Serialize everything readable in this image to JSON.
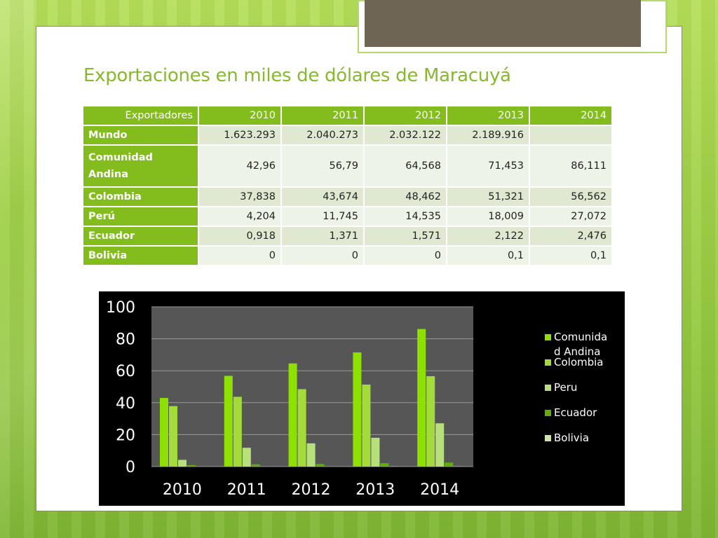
{
  "title": "Exportaciones en miles de dólares de Maracuyá",
  "table": {
    "headers": [
      "Exportadores",
      "2010",
      "2011",
      "2012",
      "2013",
      "2014"
    ],
    "rows": [
      {
        "name": "Mundo",
        "values": [
          "1.623.293",
          "2.040.273",
          "2.032.122",
          "2.189.916",
          ""
        ]
      },
      {
        "name_lines": [
          "Comunidad",
          "Andina"
        ],
        "values": [
          "42,96",
          "56,79",
          "64,568",
          "71,453",
          "86,111"
        ]
      },
      {
        "name": "Colombia",
        "values": [
          "37,838",
          "43,674",
          "48,462",
          "51,321",
          "56,562"
        ]
      },
      {
        "name": "Perú",
        "values": [
          "4,204",
          "11,745",
          "14,535",
          "18,009",
          "27,072"
        ]
      },
      {
        "name": "Ecuador",
        "values": [
          "0,918",
          "1,371",
          "1,571",
          "2,122",
          "2,476"
        ]
      },
      {
        "name": "Bolivia",
        "values": [
          "0",
          "0",
          "0",
          "0,1",
          "0,1"
        ]
      }
    ]
  },
  "colors": {
    "accent": "#83bd1d",
    "title": "#86b92f",
    "deco": "#6f6555"
  },
  "chart_data": {
    "type": "bar",
    "categories": [
      "2010",
      "2011",
      "2012",
      "2013",
      "2014"
    ],
    "series": [
      {
        "name": "Comunidad Andina",
        "legend_lines": [
          "Comunida",
          "d Andina"
        ],
        "color": "#8ee000",
        "values": [
          42.96,
          56.79,
          64.568,
          71.453,
          86.111
        ]
      },
      {
        "name": "Colombia",
        "legend_lines": [
          "Colombia"
        ],
        "color": "#a3dc3a",
        "values": [
          37.838,
          43.674,
          48.462,
          51.321,
          56.562
        ]
      },
      {
        "name": "Peru",
        "legend_lines": [
          "Peru"
        ],
        "color": "#b7e07a",
        "values": [
          4.204,
          11.745,
          14.535,
          18.009,
          27.072
        ]
      },
      {
        "name": "Ecuador",
        "legend_lines": [
          "Ecuador"
        ],
        "color": "#5fae0c",
        "values": [
          0.918,
          1.371,
          1.571,
          2.122,
          2.476
        ]
      },
      {
        "name": "Bolivia",
        "legend_lines": [
          "Bolivia"
        ],
        "color": "#c8e6a0",
        "values": [
          0,
          0,
          0,
          0.1,
          0.1
        ]
      }
    ],
    "yticks": [
      "0",
      "20",
      "40",
      "60",
      "80",
      "100"
    ],
    "ylim": [
      0,
      100
    ],
    "grid": true,
    "legend_position": "right"
  }
}
